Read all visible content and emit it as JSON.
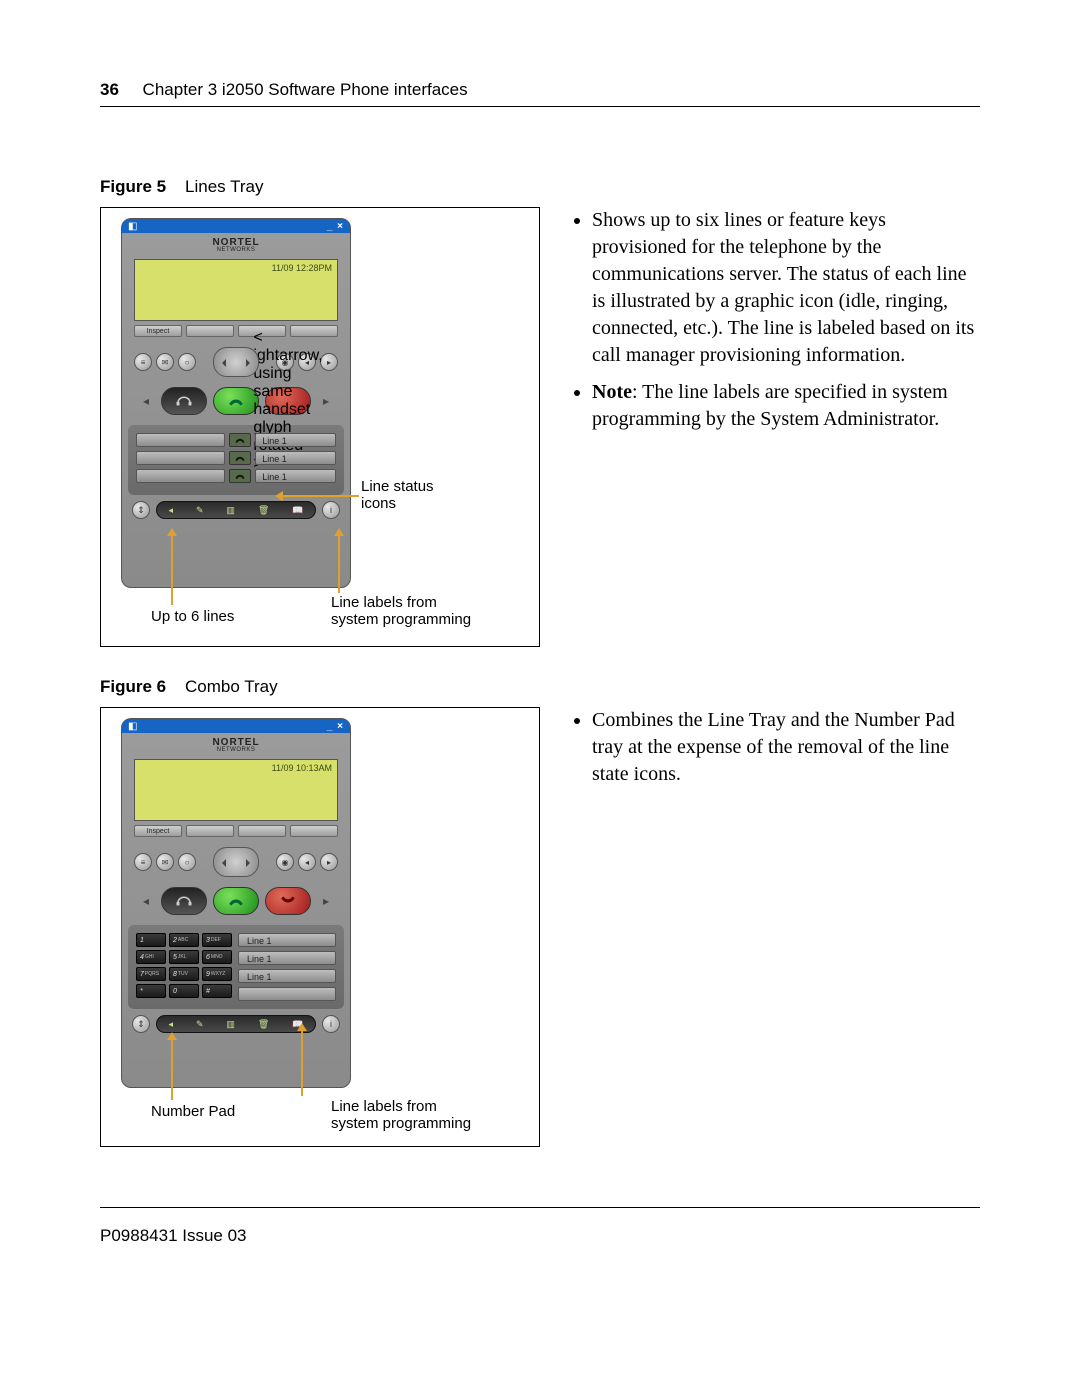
{
  "header": {
    "page_number": "36",
    "chapter_text": "Chapter 3  i2050 Software Phone interfaces"
  },
  "footer": {
    "doc_id": "P0988431 Issue 03"
  },
  "fig5": {
    "label": "Figure 5",
    "title": "Lines Tray",
    "phone": {
      "brand": "NORTEL",
      "brand_sub": "NETWORKS",
      "datetime": "11/09 12:28PM",
      "softkey": "Inspect",
      "lines": [
        "Line 1",
        "Line 1",
        "Line 1"
      ]
    },
    "annotations": {
      "line_status": "Line status\nicons",
      "line_labels": "Line labels from\nsystem programming",
      "up_to_6": "Up to 6 lines"
    },
    "desc": {
      "bullet1": "Shows up to six lines or feature keys provisioned for the telephone by the communications server. The status of each line is illustrated by a graphic icon (idle, ringing, connected, etc.). The line is labeled based on its call manager provisioning information.",
      "note_prefix": "Note",
      "bullet2": ": The line labels are specified in system programming by the System Administrator."
    }
  },
  "fig6": {
    "label": "Figure 6",
    "title": "Combo Tray",
    "phone": {
      "brand": "NORTEL",
      "brand_sub": "NETWORKS",
      "datetime": "11/09 10:13AM",
      "softkey": "Inspect",
      "lines": [
        "Line 1",
        "Line 1",
        "Line 1"
      ],
      "keys": [
        {
          "n": "1",
          "s": ""
        },
        {
          "n": "2",
          "s": "ABC"
        },
        {
          "n": "3",
          "s": "DEF"
        },
        {
          "n": "4",
          "s": "GHI"
        },
        {
          "n": "5",
          "s": "JKL"
        },
        {
          "n": "6",
          "s": "MNO"
        },
        {
          "n": "7",
          "s": "PQRS"
        },
        {
          "n": "8",
          "s": "TUV"
        },
        {
          "n": "9",
          "s": "WXYZ"
        },
        {
          "n": "*",
          "s": ""
        },
        {
          "n": "0",
          "s": ""
        },
        {
          "n": "#",
          "s": ""
        }
      ]
    },
    "annotations": {
      "number_pad": "Number Pad",
      "line_labels": "Line labels from\nsystem programming"
    },
    "desc": {
      "bullet1": "Combines the Line Tray and the Number Pad tray at the expense of the removal of the line state icons."
    }
  },
  "colors": {
    "annotation_arrow": "#e0a030",
    "screen_bg": "#d7e06a",
    "titlebar": "#1664c4"
  }
}
